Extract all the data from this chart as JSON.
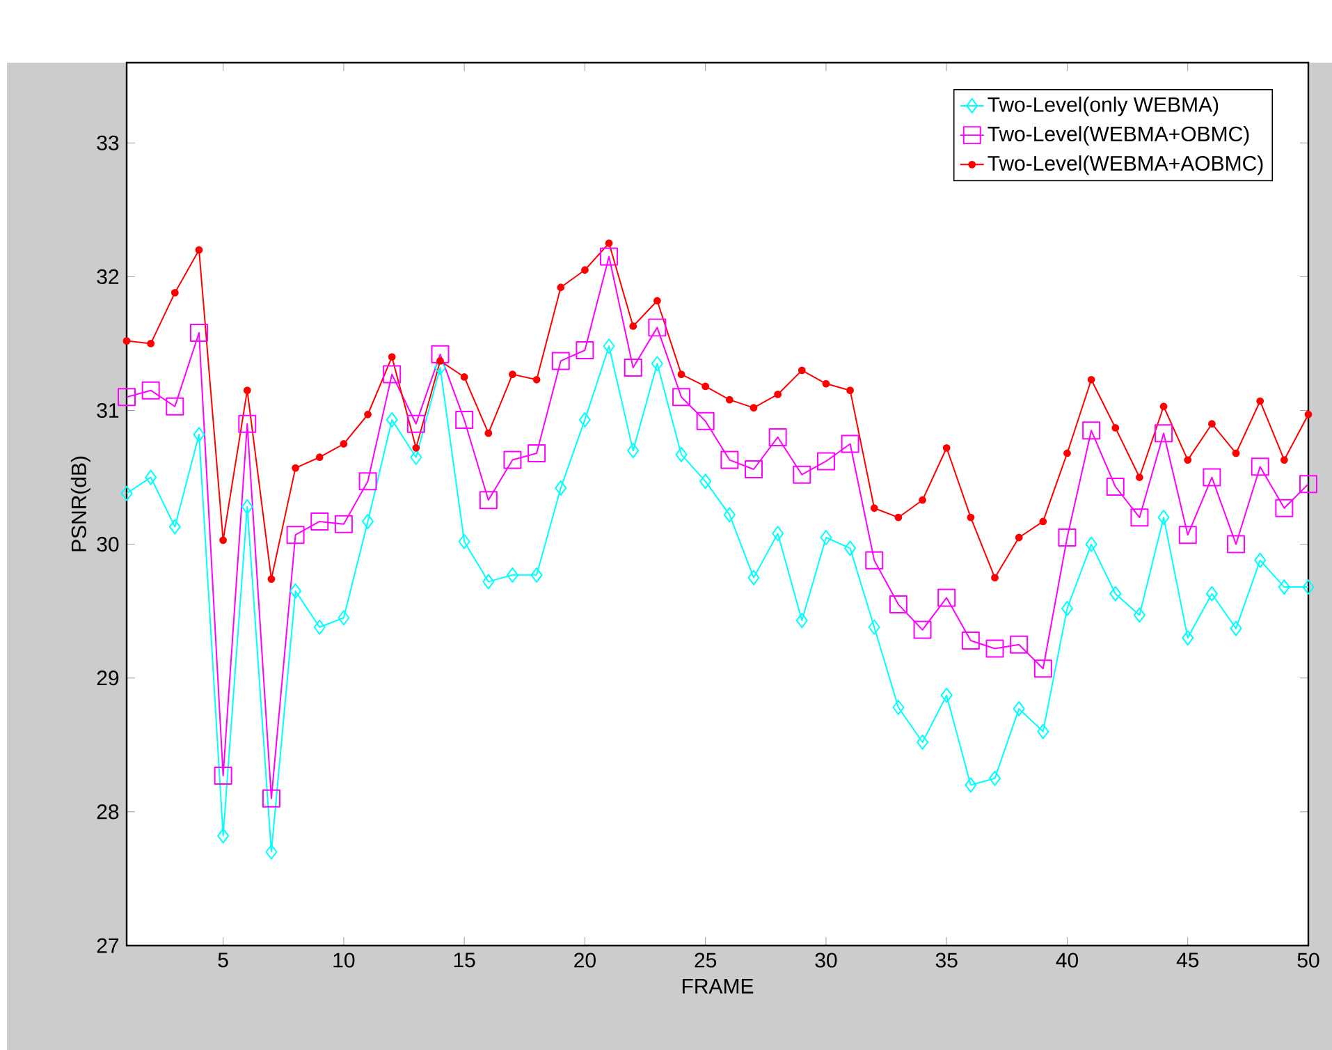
{
  "chart_data": {
    "type": "line",
    "xlabel": "FRAME",
    "ylabel": "PSNR(dB)",
    "x": [
      1,
      2,
      3,
      4,
      5,
      6,
      7,
      8,
      9,
      10,
      11,
      12,
      13,
      14,
      15,
      16,
      17,
      18,
      19,
      20,
      21,
      22,
      23,
      24,
      25,
      26,
      27,
      28,
      29,
      30,
      31,
      32,
      33,
      34,
      35,
      36,
      37,
      38,
      39,
      40,
      41,
      42,
      43,
      44,
      45,
      46,
      47,
      48,
      49,
      50
    ],
    "xlim": [
      1,
      50
    ],
    "xticks": [
      5,
      10,
      15,
      20,
      25,
      30,
      35,
      40,
      45,
      50
    ],
    "ylim": [
      27,
      33.6
    ],
    "yticks": [
      27,
      28,
      29,
      30,
      31,
      32,
      33
    ],
    "legend": "top right",
    "grid": false,
    "series": [
      {
        "name": "Two-Level(only WEBMA)",
        "color": "#00ffff",
        "marker": "diamond",
        "values": [
          30.38,
          30.5,
          30.13,
          30.82,
          27.82,
          30.28,
          27.7,
          29.65,
          29.38,
          29.45,
          30.17,
          30.93,
          30.65,
          31.32,
          30.02,
          29.72,
          29.77,
          29.77,
          30.42,
          30.93,
          31.48,
          30.7,
          31.35,
          30.67,
          30.47,
          30.22,
          29.75,
          30.08,
          29.43,
          30.05,
          29.97,
          29.38,
          28.78,
          28.52,
          28.87,
          28.2,
          28.25,
          28.77,
          28.6,
          29.52,
          30.0,
          29.63,
          29.47,
          30.2,
          29.3,
          29.63,
          29.37,
          29.88,
          29.68,
          29.68
        ]
      },
      {
        "name": "Two-Level(WEBMA+OBMC)",
        "color": "#ff00ff",
        "marker": "square",
        "values": [
          31.1,
          31.15,
          31.03,
          31.58,
          28.27,
          30.9,
          28.1,
          30.07,
          30.17,
          30.15,
          30.47,
          31.27,
          30.9,
          31.42,
          30.93,
          30.33,
          30.63,
          30.68,
          31.37,
          31.45,
          32.15,
          31.32,
          31.62,
          31.1,
          30.92,
          30.63,
          30.56,
          30.8,
          30.52,
          30.62,
          30.75,
          29.88,
          29.55,
          29.36,
          29.6,
          29.28,
          29.22,
          29.25,
          29.07,
          30.05,
          30.85,
          30.43,
          30.2,
          30.83,
          30.07,
          30.5,
          30.0,
          30.58,
          30.27,
          30.45
        ]
      },
      {
        "name": "Two-Level(WEBMA+AOBMC)",
        "color": "#ff0000",
        "marker": "circle",
        "values": [
          31.52,
          31.5,
          31.88,
          32.2,
          30.03,
          31.15,
          29.74,
          30.57,
          30.65,
          30.75,
          30.97,
          31.4,
          30.72,
          31.37,
          31.25,
          30.83,
          31.27,
          31.23,
          31.92,
          32.05,
          32.25,
          31.63,
          31.82,
          31.27,
          31.18,
          31.08,
          31.02,
          31.12,
          31.3,
          31.2,
          31.15,
          30.27,
          30.2,
          30.33,
          30.72,
          30.2,
          29.75,
          30.05,
          30.17,
          30.68,
          31.23,
          30.87,
          30.5,
          31.03,
          30.63,
          30.9,
          30.68,
          31.07,
          30.63,
          30.97
        ]
      }
    ]
  }
}
